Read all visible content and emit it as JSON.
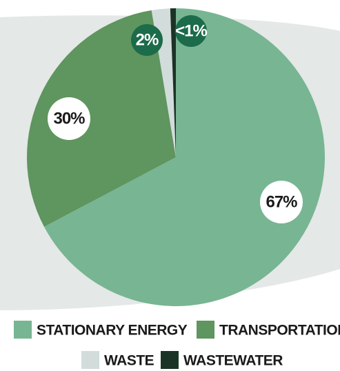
{
  "chart_data": {
    "type": "pie",
    "categories": [
      "STATIONARY ENERGY",
      "TRANSPORTATION",
      "WASTE",
      "WASTEWATER"
    ],
    "values": [
      67,
      30,
      2,
      0.6
    ],
    "value_labels": [
      "67%",
      "30%",
      "2%",
      "<1%"
    ],
    "colors": [
      "#78b593",
      "#5f955f",
      "#d2dcdb",
      "#1b3326"
    ],
    "start_angle": 90,
    "direction": "clockwise",
    "legend": "bottom"
  }
}
